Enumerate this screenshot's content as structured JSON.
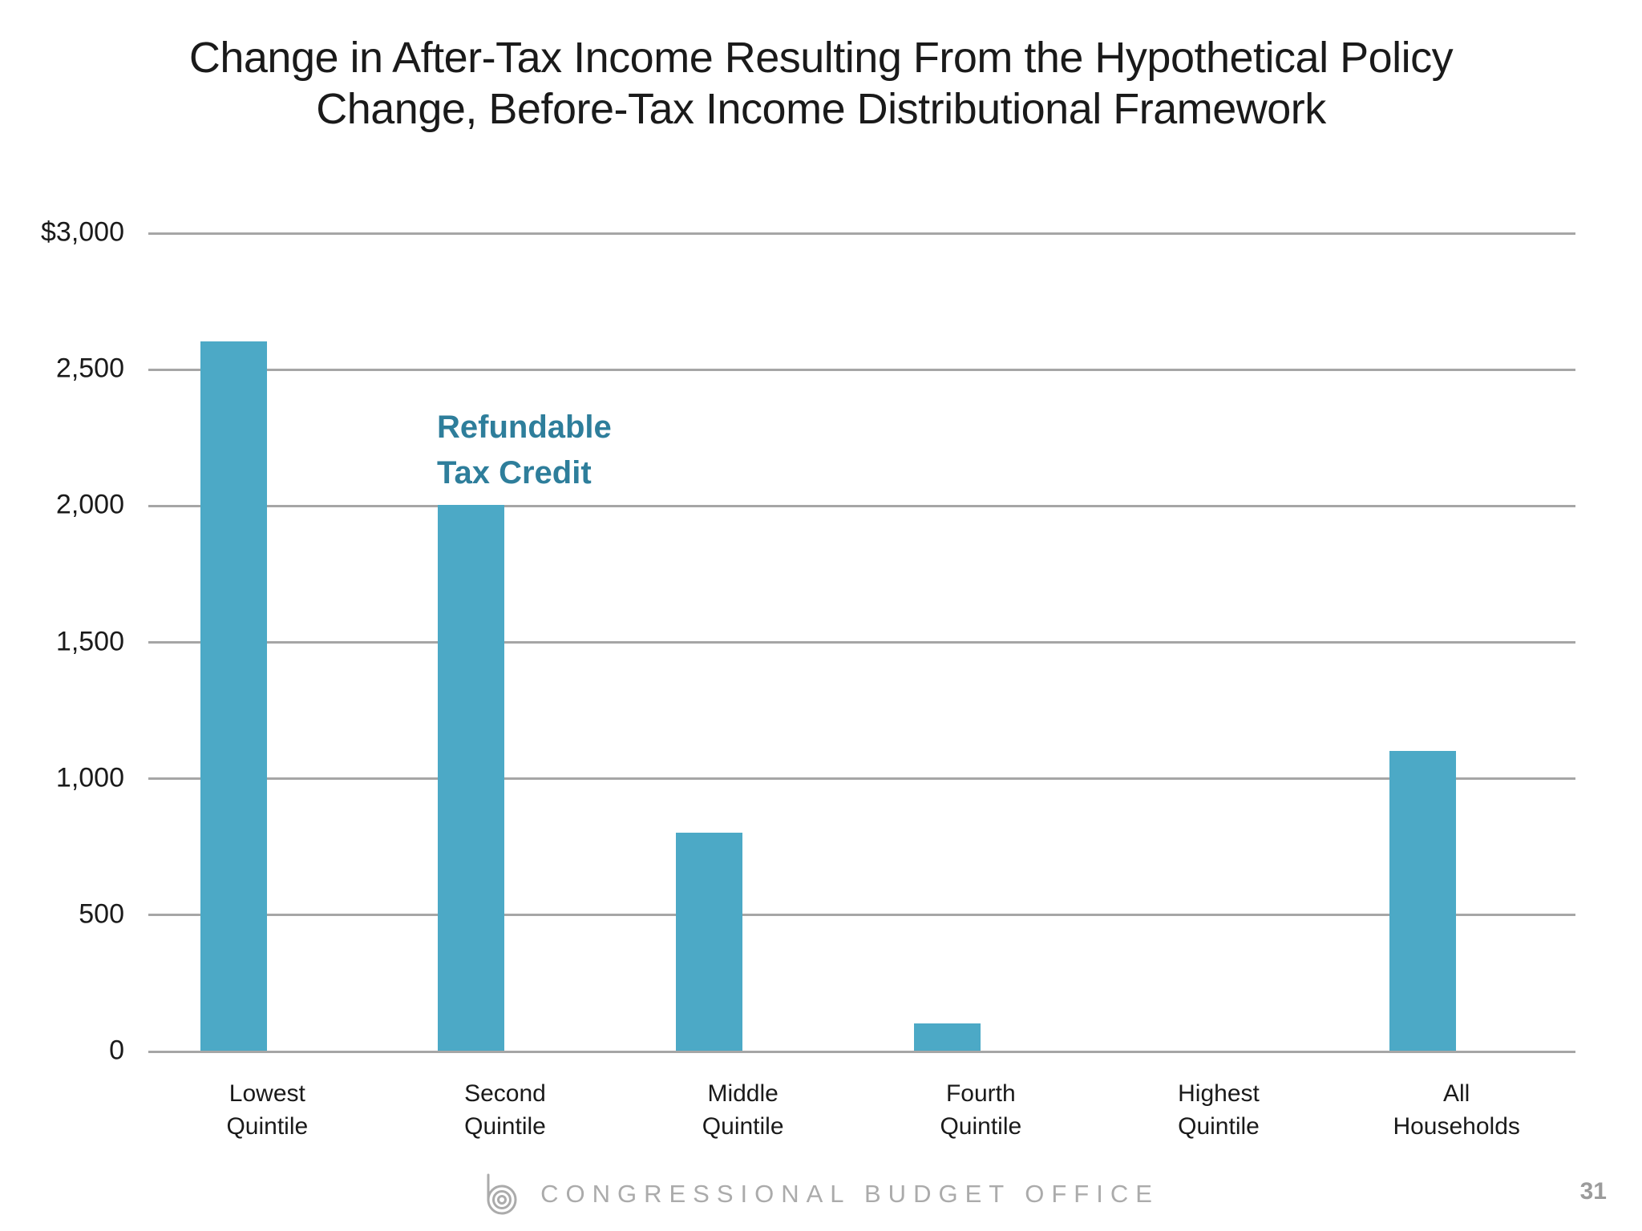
{
  "title": {
    "line1": "Change in After-Tax Income Resulting From the Hypothetical Policy",
    "line2": "Change, Before-Tax Income Distributional Framework"
  },
  "chart_data": {
    "type": "bar",
    "title": "Change in After-Tax Income Resulting From the Hypothetical Policy Change, Before-Tax Income Distributional Framework",
    "categories": [
      "Lowest Quintile",
      "Second Quintile",
      "Middle Quintile",
      "Fourth Quintile",
      "Highest Quintile",
      "All Households"
    ],
    "category_label_lines": [
      [
        "Lowest",
        "Quintile"
      ],
      [
        "Second",
        "Quintile"
      ],
      [
        "Middle",
        "Quintile"
      ],
      [
        "Fourth",
        "Quintile"
      ],
      [
        "Highest",
        "Quintile"
      ],
      [
        "All",
        "Households"
      ]
    ],
    "values": [
      2600,
      2000,
      800,
      100,
      0,
      1100
    ],
    "series_label": "Refundable Tax Credit",
    "annotation_lines": [
      "Refundable",
      "Tax Credit"
    ],
    "y_tick_labels": [
      "$3,000",
      "2,500",
      "2,000",
      "1,500",
      "1,000",
      "500",
      "0"
    ],
    "y_tick_values": [
      3000,
      2500,
      2000,
      1500,
      1000,
      500,
      0
    ],
    "ylim": [
      0,
      3000
    ],
    "xlabel": "",
    "ylabel": "",
    "grid": "horizontal",
    "legend": "none"
  },
  "footer": {
    "org_name": "CONGRESSIONAL BUDGET OFFICE",
    "logo_icon": "cbo-logo-icon",
    "page_number": "31"
  },
  "colors": {
    "background": "#FFFFFF",
    "bar": "#4CA9C6",
    "annotation_text": "#2E7E9B",
    "gridline": "#A6A6A6",
    "axis_text": "#1A1A1A",
    "title_text": "#1A1A1A",
    "footer_text": "#ABABAB",
    "page_number_text": "#9B9B9B"
  }
}
